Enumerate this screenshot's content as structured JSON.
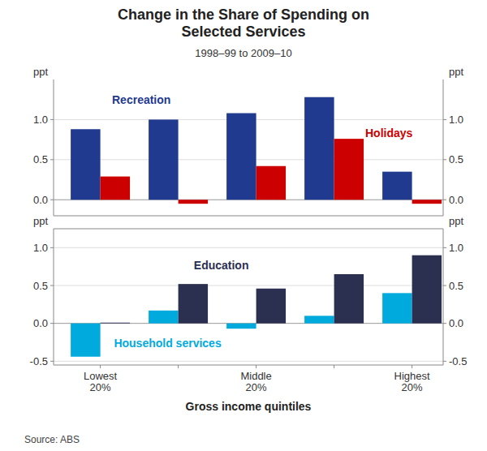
{
  "chart_data": [
    {
      "type": "bar",
      "title": "Change in the Share of Spending on\nSelected Services",
      "subtitle": "1998–99 to 2009–10",
      "categories": [
        null,
        null,
        null,
        null,
        null
      ],
      "series": [
        {
          "name": "Recreation",
          "color": "#1F3A8F",
          "values": [
            0.88,
            1.0,
            1.08,
            1.28,
            0.35
          ]
        },
        {
          "name": "Holidays",
          "color": "#CC0000",
          "values": [
            0.29,
            -0.05,
            0.42,
            0.76,
            -0.05
          ]
        }
      ],
      "ylabel": "ppt",
      "y2label": "ppt",
      "ylim": [
        -0.2,
        1.5
      ],
      "yticks": [
        {
          "value": 0,
          "label": "0.0"
        },
        0.5,
        {
          "value": 1,
          "label": "1.0"
        }
      ],
      "y2lim": [
        -0.2,
        1.5
      ],
      "y2ticks": [
        {
          "value": 0,
          "label": "0.0"
        },
        0.5,
        {
          "value": 1,
          "label": "1.0"
        }
      ],
      "grid": true,
      "tick_labels": "y"
    },
    {
      "type": "bar",
      "xlabel": "Gross income quintiles",
      "source": "Source: ABS",
      "categories": [
        "Lowest\n20%",
        null,
        "Middle\n20%",
        null,
        "Highest\n20%"
      ],
      "series": [
        {
          "name": "Household services",
          "color": "#00AADD",
          "values": [
            -0.44,
            0.17,
            -0.07,
            0.1,
            0.4
          ]
        },
        {
          "name": "Education",
          "color": "#2C3050",
          "values": [
            0.01,
            0.52,
            0.46,
            0.65,
            0.9
          ]
        }
      ],
      "ylabel": "ppt",
      "y2label": "ppt",
      "ylim": [
        -0.55,
        1.25
      ],
      "yticks": [
        -0.5,
        {
          "value": 0,
          "label": "0.0"
        },
        0.5,
        {
          "value": 1,
          "label": "1.0"
        }
      ],
      "y2lim": [
        -0.55,
        1.25
      ],
      "y2ticks": [
        -0.5,
        {
          "value": 0,
          "label": "0.0"
        },
        0.5,
        {
          "value": 1,
          "label": "1.0"
        }
      ],
      "grid": true
    }
  ]
}
